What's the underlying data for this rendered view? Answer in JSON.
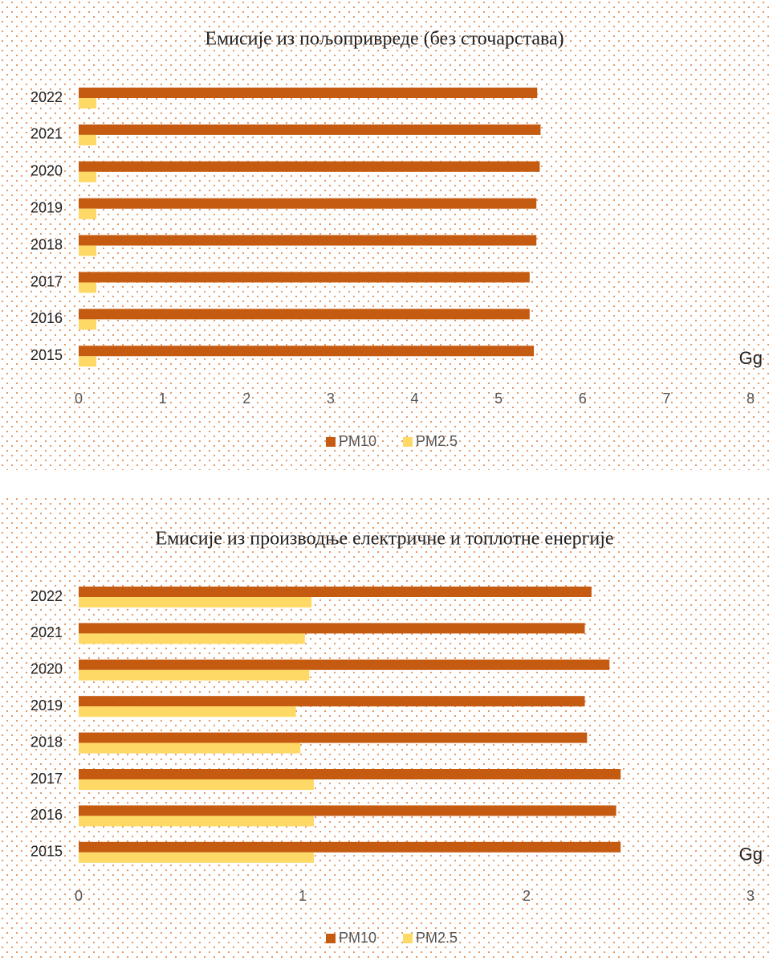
{
  "chart_data": [
    {
      "type": "bar",
      "orientation": "horizontal",
      "title": "Емисије из пољопривреде (без сточарстава)",
      "x_label": "Gg",
      "categories": [
        "2022",
        "2021",
        "2020",
        "2019",
        "2018",
        "2017",
        "2016",
        "2015"
      ],
      "series": [
        {
          "name": "PM10",
          "color": "#c55a11",
          "values": [
            5.46,
            5.5,
            5.49,
            5.45,
            5.45,
            5.37,
            5.37,
            5.42
          ]
        },
        {
          "name": "PM2.5",
          "color": "#ffd966",
          "values": [
            0.21,
            0.21,
            0.21,
            0.21,
            0.21,
            0.21,
            0.21,
            0.21
          ]
        }
      ],
      "xlim": [
        0,
        8
      ],
      "xticks": [
        0,
        1,
        2,
        3,
        4,
        5,
        6,
        7,
        8
      ],
      "grid": false,
      "legend": "bottom"
    },
    {
      "type": "bar",
      "orientation": "horizontal",
      "title": "Емисије из производње електричне и топлотне енергије",
      "x_label": "Gg",
      "categories": [
        "2022",
        "2021",
        "2020",
        "2019",
        "2018",
        "2017",
        "2016",
        "2015"
      ],
      "series": [
        {
          "name": "PM10",
          "color": "#c55a11",
          "values": [
            2.29,
            2.26,
            2.37,
            2.26,
            2.27,
            2.42,
            2.4,
            2.42
          ]
        },
        {
          "name": "PM2.5",
          "color": "#ffd966",
          "values": [
            1.04,
            1.01,
            1.03,
            0.97,
            0.99,
            1.05,
            1.05,
            1.05
          ]
        }
      ],
      "xlim": [
        0,
        3
      ],
      "xticks": [
        0,
        1,
        2,
        3
      ],
      "grid": false,
      "legend": "bottom"
    }
  ]
}
